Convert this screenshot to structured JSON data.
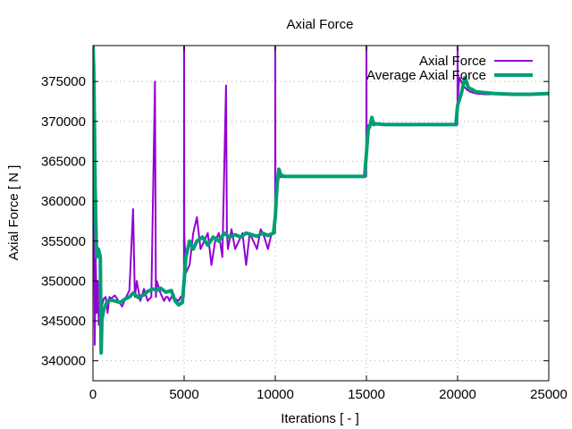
{
  "chart_data": {
    "type": "line",
    "title": "Axial Force",
    "xlabel": "Iterations [ - ]",
    "ylabel": "Axial Force [ N ]",
    "xlim": [
      0,
      25000
    ],
    "ylim": [
      337500,
      379500
    ],
    "x_ticks": [
      0,
      5000,
      10000,
      15000,
      20000,
      25000
    ],
    "y_ticks": [
      340000,
      345000,
      350000,
      355000,
      360000,
      365000,
      370000,
      375000
    ],
    "grid": true,
    "legend_position": "top-right",
    "series": [
      {
        "name": "Axial Force",
        "color": "#9400d3",
        "style": "thin",
        "x": [
          0,
          50,
          100,
          150,
          200,
          260,
          320,
          400,
          500,
          600,
          700,
          800,
          900,
          1000,
          1200,
          1400,
          1600,
          1800,
          2000,
          2200,
          2300,
          2400,
          2600,
          2800,
          3000,
          3200,
          3400,
          3450,
          3500,
          3700,
          3900,
          4000,
          4100,
          4200,
          4300,
          4500,
          4700,
          4800,
          4900,
          4990,
          5000,
          5010,
          5100,
          5300,
          5500,
          5700,
          5900,
          6100,
          6300,
          6500,
          6700,
          6900,
          7100,
          7300,
          7350,
          7400,
          7600,
          7800,
          8000,
          8200,
          8400,
          8600,
          8800,
          9000,
          9200,
          9400,
          9600,
          9800,
          9990,
          10000,
          10010,
          10100,
          10200,
          10300,
          10400,
          10500,
          10700,
          11000,
          12000,
          13000,
          14000,
          14990,
          15000,
          15010,
          15100,
          15300,
          15500,
          15700,
          16000,
          17000,
          18000,
          19000,
          19990,
          20000,
          20010,
          20100,
          20300,
          20500,
          20700,
          21000,
          21500,
          22000,
          22500,
          23000,
          23500,
          24000,
          24500,
          25000
        ],
        "y": [
          379500,
          362000,
          342000,
          353000,
          346000,
          350000,
          344500,
          346000,
          347000,
          347800,
          348000,
          346000,
          348000,
          347800,
          348200,
          347500,
          346800,
          347900,
          348800,
          359000,
          348000,
          350000,
          347500,
          349000,
          347500,
          348000,
          375000,
          348000,
          350000,
          348500,
          347500,
          348000,
          348000,
          347500,
          348000,
          347800,
          347500,
          348000,
          348000,
          348000,
          379500,
          356000,
          351000,
          352000,
          356000,
          358000,
          354000,
          355000,
          356000,
          352000,
          355000,
          356000,
          353000,
          374500,
          356000,
          354000,
          356500,
          354000,
          355000,
          356000,
          352000,
          356000,
          355000,
          354000,
          356500,
          355500,
          354000,
          356000,
          356000,
          379500,
          362000,
          362800,
          363200,
          363000,
          363100,
          363000,
          363100,
          363100,
          363100,
          363100,
          363100,
          363100,
          379500,
          369000,
          369500,
          369600,
          369700,
          369600,
          369600,
          369600,
          369600,
          369600,
          369600,
          379500,
          373000,
          375500,
          374500,
          374000,
          373700,
          373500,
          373400,
          373400,
          373400,
          373500,
          373400,
          373400,
          373500,
          373500
        ]
      },
      {
        "name": "Average Axial Force",
        "color": "#009e73",
        "style": "thick",
        "x": [
          0,
          40,
          80,
          120,
          160,
          200,
          300,
          400,
          450,
          500,
          520,
          600,
          800,
          1000,
          1200,
          1500,
          1800,
          2000,
          2200,
          2500,
          2800,
          3000,
          3300,
          3500,
          3700,
          4000,
          4300,
          4500,
          4700,
          4900,
          5000,
          5100,
          5300,
          5500,
          5700,
          6000,
          6300,
          6600,
          6900,
          7200,
          7500,
          7800,
          8100,
          8400,
          8700,
          9000,
          9300,
          9600,
          9900,
          10000,
          10100,
          10200,
          10300,
          10400,
          10500,
          11000,
          12000,
          13000,
          14000,
          14900,
          15000,
          15100,
          15200,
          15300,
          15400,
          15500,
          16000,
          17000,
          18000,
          19000,
          19900,
          20000,
          20200,
          20400,
          20600,
          20800,
          21000,
          22000,
          23000,
          24000,
          25000
        ],
        "y": [
          379500,
          377000,
          370000,
          362000,
          357000,
          353000,
          354000,
          353000,
          341000,
          346000,
          345500,
          346500,
          347500,
          347600,
          347500,
          347300,
          347800,
          348000,
          348500,
          347900,
          348300,
          348700,
          349000,
          348800,
          349100,
          348600,
          348800,
          347500,
          347000,
          347300,
          350000,
          353000,
          355000,
          354000,
          355000,
          355500,
          354500,
          355500,
          355000,
          356000,
          355500,
          355800,
          355500,
          356000,
          355800,
          355600,
          356000,
          355700,
          356000,
          358000,
          362000,
          364000,
          363300,
          363200,
          363100,
          363100,
          363100,
          363100,
          363100,
          363100,
          366000,
          369000,
          369500,
          370500,
          369600,
          369700,
          369600,
          369600,
          369600,
          369600,
          369600,
          372000,
          373500,
          375500,
          374200,
          374000,
          373700,
          373500,
          373400,
          373400,
          373500
        ]
      }
    ]
  }
}
